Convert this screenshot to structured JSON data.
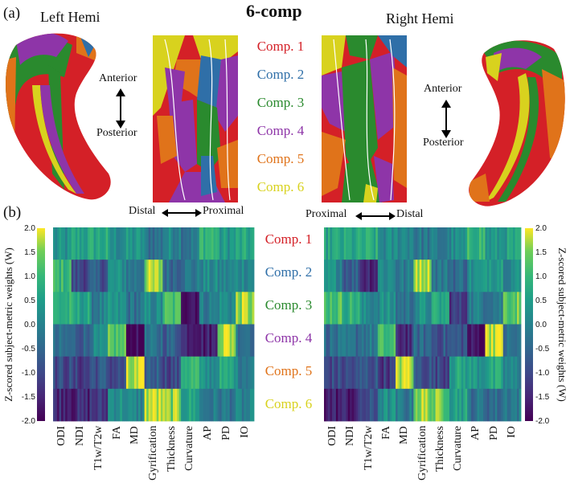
{
  "figure": {
    "panel_a": "(a)",
    "panel_b": "(b)",
    "title": "6-comp",
    "left_hemi": "Left Hemi",
    "right_hemi": "Right Hemi",
    "anterior": "Anterior",
    "posterior": "Posterior",
    "distal": "Distal",
    "proximal": "Proximal",
    "components": [
      {
        "label": "Comp. 1",
        "color": "#d42027"
      },
      {
        "label": "Comp. 2",
        "color": "#2f6fa8"
      },
      {
        "label": "Comp. 3",
        "color": "#2a8a2e"
      },
      {
        "label": "Comp. 4",
        "color": "#8e35a8"
      },
      {
        "label": "Comp. 5",
        "color": "#e0731a"
      },
      {
        "label": "Comp. 6",
        "color": "#d8d21e"
      }
    ]
  },
  "chart_data": {
    "type": "heatmap",
    "colormap": "viridis",
    "colorbar_label": "Z-scored subject-metric weights (W)",
    "colorbar_ticks": [
      "2.0",
      "1.5",
      "1.0",
      "0.5",
      "0.0",
      "-0.5",
      "-1.0",
      "-1.5",
      "-2.0"
    ],
    "clim": [
      -2.0,
      2.0
    ],
    "metrics": [
      "ODI",
      "NDI",
      "T1w/T2w",
      "FA",
      "MD",
      "Gyrification",
      "Thickness",
      "Curvature",
      "AP",
      "PD",
      "IO"
    ],
    "rows": [
      "Comp. 1",
      "Comp. 2",
      "Comp. 3",
      "Comp. 4",
      "Comp. 5",
      "Comp. 6"
    ],
    "left_means": [
      [
        0.2,
        0.6,
        0.7,
        0.2,
        0.3,
        -0.3,
        0.1,
        -0.2,
        1.0,
        0.4,
        0.6
      ],
      [
        1.0,
        -1.0,
        -0.8,
        0.2,
        -0.2,
        1.6,
        -0.4,
        -0.2,
        0.1,
        0.0,
        0.2
      ],
      [
        0.8,
        0.6,
        -0.1,
        0.2,
        -0.3,
        0.1,
        1.1,
        -1.6,
        -0.1,
        0.2,
        1.6
      ],
      [
        -0.5,
        -0.6,
        0.0,
        1.2,
        -2.0,
        -0.4,
        -0.6,
        -1.4,
        -1.6,
        1.8,
        -0.2
      ],
      [
        -1.0,
        -1.2,
        -0.8,
        -1.0,
        1.6,
        -0.6,
        -1.0,
        1.0,
        0.2,
        0.6,
        0.0
      ],
      [
        -1.4,
        -1.5,
        -1.3,
        0.3,
        0.0,
        1.8,
        1.5,
        0.6,
        -0.2,
        -0.2,
        -0.1
      ]
    ],
    "right_means": [
      [
        0.6,
        0.6,
        0.7,
        0.1,
        0.2,
        -0.2,
        -0.2,
        0.1,
        1.0,
        0.3,
        0.5
      ],
      [
        0.2,
        -0.6,
        -1.4,
        0.2,
        -0.2,
        1.9,
        -0.2,
        -0.4,
        0.2,
        0.6,
        0.2
      ],
      [
        1.2,
        0.9,
        0.1,
        0.2,
        -0.3,
        0.2,
        0.6,
        -1.2,
        -0.1,
        -0.1,
        1.4
      ],
      [
        -0.4,
        -0.4,
        -0.2,
        1.0,
        -1.4,
        -0.5,
        -0.8,
        -0.8,
        -1.8,
        1.9,
        -0.4
      ],
      [
        -1.0,
        -1.0,
        -0.8,
        -1.2,
        1.8,
        -0.8,
        -1.0,
        0.6,
        0.4,
        0.6,
        0.0
      ],
      [
        -1.6,
        -1.6,
        -1.0,
        0.2,
        -0.2,
        1.6,
        1.4,
        0.6,
        -0.3,
        -0.4,
        -0.1
      ]
    ]
  }
}
